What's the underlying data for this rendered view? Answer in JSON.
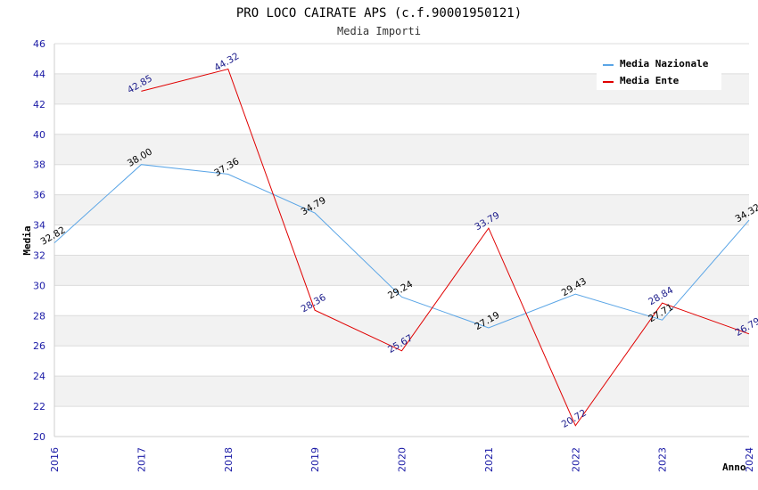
{
  "chart_data": {
    "type": "line",
    "title": "PRO LOCO CAIRATE APS (c.f.90001950121)",
    "subtitle": "Media Importi",
    "xlabel": "Anno",
    "ylabel": "Media",
    "ylim": [
      20,
      46
    ],
    "ystep": 2,
    "categories": [
      "2016",
      "2017",
      "2018",
      "2019",
      "2020",
      "2021",
      "2022",
      "2023",
      "2024"
    ],
    "series": [
      {
        "name": "Media Nazionale",
        "color": "#5aa5e6",
        "label_color": "#000000",
        "values": [
          32.82,
          38.0,
          37.36,
          34.79,
          29.24,
          27.19,
          29.43,
          27.71,
          34.32
        ],
        "labels": [
          "32.82",
          "38.00",
          "37.36",
          "34.79",
          "29.24",
          "27.19",
          "29.43",
          "27.71",
          "34.32"
        ]
      },
      {
        "name": "Media Ente",
        "color": "#e00000",
        "label_color": "#1a1a8a",
        "values": [
          null,
          42.85,
          44.32,
          28.36,
          25.67,
          33.79,
          20.72,
          28.84,
          26.79
        ],
        "labels": [
          "",
          "42.85",
          "44.32",
          "28.36",
          "25.67",
          "33.79",
          "20.72",
          "28.84",
          "26.79"
        ]
      }
    ],
    "legend_position": "top-right"
  }
}
